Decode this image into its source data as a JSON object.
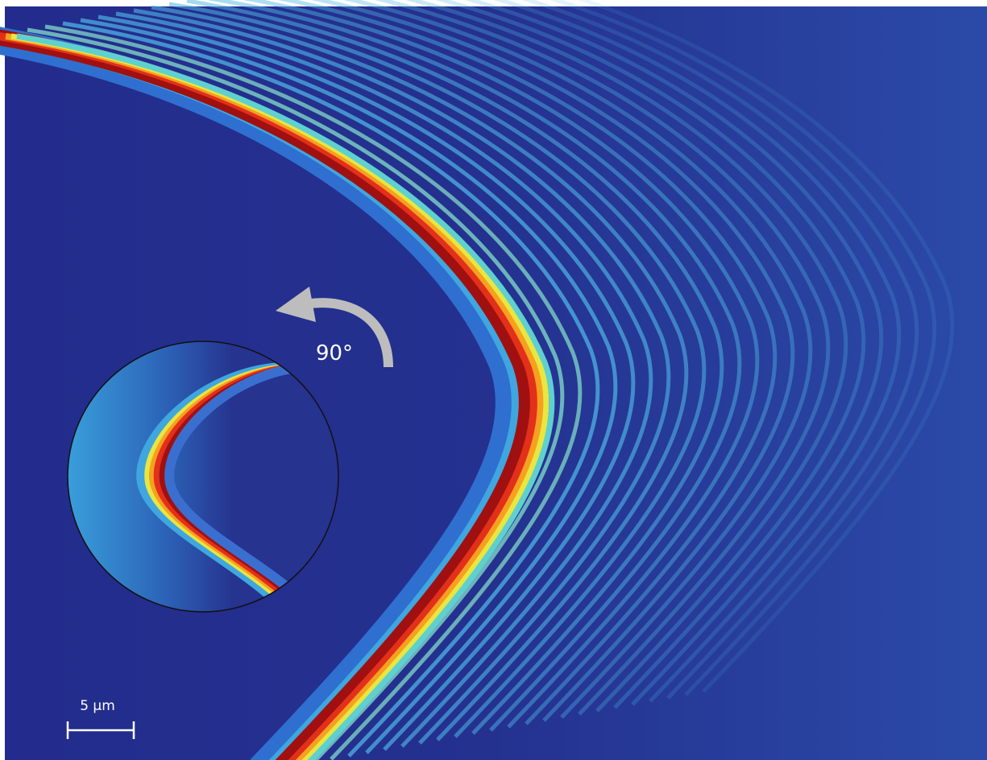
{
  "annotations": {
    "rotation": "90°",
    "scale_bar": "5 µm"
  }
}
